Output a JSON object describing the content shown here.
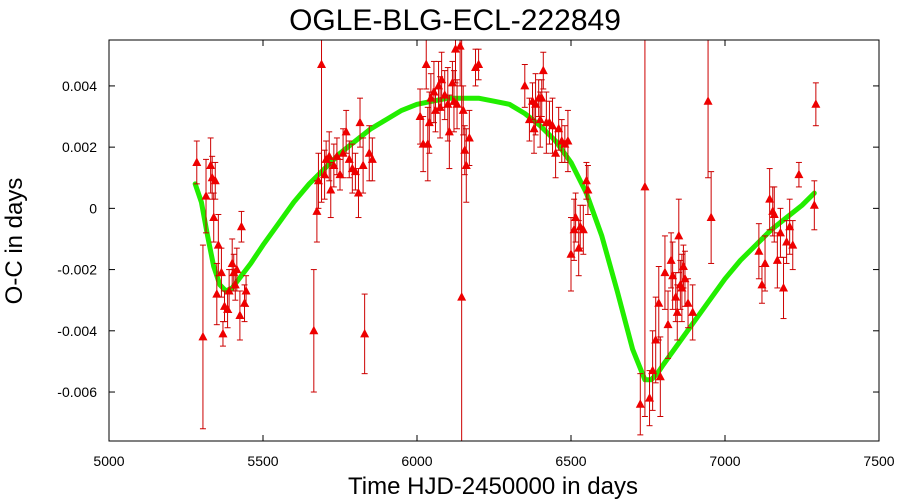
{
  "chart_data": {
    "type": "scatter",
    "title": "OGLE-BLG-ECL-222849",
    "xlabel": "Time HJD-2450000 in days",
    "ylabel": "O-C in days",
    "xlim": [
      5000,
      7500
    ],
    "ylim": [
      -0.0076,
      0.0055
    ],
    "x_ticks": [
      5000,
      5500,
      6000,
      6500,
      7000,
      7500
    ],
    "x_tick_labels": [
      "5000",
      "5500",
      "6000",
      "6500",
      "7000",
      "7500"
    ],
    "y_ticks": [
      -0.006,
      -0.004,
      -0.002,
      0,
      0.002,
      0.004
    ],
    "y_tick_labels": [
      "-0.006",
      "-0.004",
      "-0.002",
      "0",
      "0.002",
      "0.004"
    ],
    "grid": false,
    "colors": {
      "points": "#ee0000",
      "errorbars": "#cc0000",
      "fit": "#22ee00",
      "frame": "#000000"
    },
    "series": [
      {
        "kind": "observations",
        "marker": "triangle",
        "points": [
          [
            5285,
            0.0015,
            0.0007
          ],
          [
            5305,
            -0.0042,
            0.003
          ],
          [
            5315,
            0.0004,
            0.0012
          ],
          [
            5330,
            0.0014,
            0.0009
          ],
          [
            5335,
            0.001,
            0.0007
          ],
          [
            5340,
            -0.0003,
            0.0008
          ],
          [
            5345,
            0.0009,
            0.0006
          ],
          [
            5350,
            -0.0028,
            0.001
          ],
          [
            5355,
            -0.0012,
            0.001
          ],
          [
            5365,
            -0.0021,
            0.0008
          ],
          [
            5370,
            -0.0041,
            0.0004
          ],
          [
            5375,
            -0.0032,
            0.0005
          ],
          [
            5385,
            -0.0033,
            0.0006
          ],
          [
            5390,
            -0.0027,
            0.0007
          ],
          [
            5400,
            -0.0018,
            0.0008
          ],
          [
            5405,
            -0.0021,
            0.0006
          ],
          [
            5410,
            -0.0025,
            0.0005
          ],
          [
            5415,
            -0.002,
            0.0007
          ],
          [
            5425,
            -0.0035,
            0.0008
          ],
          [
            5430,
            -0.0006,
            0.0005
          ],
          [
            5440,
            -0.0031,
            0.0006
          ],
          [
            5445,
            -0.0027,
            0.0005
          ],
          [
            5665,
            -0.004,
            0.002
          ],
          [
            5675,
            -0.0001,
            0.001
          ],
          [
            5680,
            0.0009,
            0.0009
          ],
          [
            5690,
            0.0047,
            0.0045
          ],
          [
            5700,
            0.0011,
            0.0008
          ],
          [
            5705,
            0.0016,
            0.0006
          ],
          [
            5715,
            0.0017,
            0.0008
          ],
          [
            5720,
            0.0006,
            0.0009
          ],
          [
            5730,
            0.0014,
            0.0007
          ],
          [
            5740,
            0.0017,
            0.0006
          ],
          [
            5750,
            0.0011,
            0.0005
          ],
          [
            5760,
            0.0018,
            0.0008
          ],
          [
            5770,
            0.0025,
            0.0007
          ],
          [
            5780,
            0.0016,
            0.0006
          ],
          [
            5790,
            0.0013,
            0.0008
          ],
          [
            5800,
            0.0012,
            0.0006
          ],
          [
            5810,
            0.0005,
            0.0008
          ],
          [
            5815,
            0.0028,
            0.0008
          ],
          [
            5825,
            0.0014,
            0.0009
          ],
          [
            5830,
            -0.0041,
            0.0013
          ],
          [
            5845,
            0.0018,
            0.0009
          ],
          [
            5855,
            0.0016,
            0.0007
          ],
          [
            6010,
            0.003,
            0.0009
          ],
          [
            6020,
            0.0021,
            0.0009
          ],
          [
            6030,
            0.0047,
            0.0008
          ],
          [
            6035,
            0.0021,
            0.0012
          ],
          [
            6040,
            0.0028,
            0.001
          ],
          [
            6045,
            0.0036,
            0.0008
          ],
          [
            6055,
            0.0038,
            0.001
          ],
          [
            6060,
            0.0032,
            0.0007
          ],
          [
            6070,
            0.004,
            0.0008
          ],
          [
            6075,
            0.0033,
            0.001
          ],
          [
            6080,
            0.0042,
            0.0009
          ],
          [
            6090,
            0.0037,
            0.0008
          ],
          [
            6100,
            0.0034,
            0.0012
          ],
          [
            6105,
            0.0025,
            0.0012
          ],
          [
            6115,
            0.0041,
            0.0007
          ],
          [
            6120,
            0.0035,
            0.001
          ],
          [
            6125,
            0.0052,
            0.0011
          ],
          [
            6130,
            0.0034,
            0.0008
          ],
          [
            6140,
            0.0053,
            0.0013
          ],
          [
            6145,
            -0.0029,
            0.0085
          ],
          [
            6150,
            0.0032,
            0.0008
          ],
          [
            6155,
            0.0019,
            0.0008
          ],
          [
            6160,
            0.0014,
            0.0012
          ],
          [
            6170,
            0.0023,
            0.0009
          ],
          [
            6190,
            0.0046,
            0.0006
          ],
          [
            6200,
            0.0047,
            0.0005
          ],
          [
            6350,
            0.004,
            0.0007
          ],
          [
            6365,
            0.0029,
            0.0007
          ],
          [
            6375,
            0.0035,
            0.0006
          ],
          [
            6380,
            0.0026,
            0.0008
          ],
          [
            6385,
            0.0034,
            0.001
          ],
          [
            6395,
            0.0036,
            0.0006
          ],
          [
            6400,
            0.0029,
            0.0009
          ],
          [
            6405,
            0.0036,
            0.0006
          ],
          [
            6410,
            0.0045,
            0.0006
          ],
          [
            6420,
            0.0028,
            0.001
          ],
          [
            6430,
            0.0028,
            0.0007
          ],
          [
            6440,
            0.0027,
            0.0009
          ],
          [
            6450,
            0.0018,
            0.0008
          ],
          [
            6460,
            0.0026,
            0.0007
          ],
          [
            6470,
            0.0022,
            0.0007
          ],
          [
            6480,
            0.0021,
            0.0006
          ],
          [
            6490,
            0.0022,
            0.001
          ],
          [
            6500,
            -0.0015,
            0.0012
          ],
          [
            6510,
            -0.0007,
            0.001
          ],
          [
            6515,
            -0.0003,
            0.0008
          ],
          [
            6525,
            -0.0013,
            0.0009
          ],
          [
            6530,
            -0.0006,
            0.0007
          ],
          [
            6540,
            -0.0007,
            0.0008
          ],
          [
            6550,
            0.0009,
            0.0006
          ],
          [
            6555,
            0.0006,
            0.0008
          ],
          [
            6725,
            -0.0064,
            0.001
          ],
          [
            6740,
            0.0007,
            0.0075
          ],
          [
            6755,
            -0.0062,
            0.0009
          ],
          [
            6765,
            -0.0053,
            0.0013
          ],
          [
            6775,
            -0.0043,
            0.0014
          ],
          [
            6785,
            -0.0031,
            0.0012
          ],
          [
            6790,
            -0.0055,
            0.0013
          ],
          [
            6805,
            -0.0021,
            0.0012
          ],
          [
            6815,
            -0.0038,
            0.0011
          ],
          [
            6825,
            -0.0017,
            0.0009
          ],
          [
            6830,
            -0.0022,
            0.0011
          ],
          [
            6840,
            -0.0029,
            0.0008
          ],
          [
            6845,
            -0.0034,
            0.0009
          ],
          [
            6850,
            -0.0009,
            0.0012
          ],
          [
            6855,
            -0.0025,
            0.0008
          ],
          [
            6860,
            -0.0026,
            0.0011
          ],
          [
            6865,
            -0.0019,
            0.0007
          ],
          [
            6870,
            -0.0023,
            0.0009
          ],
          [
            6880,
            -0.0031,
            0.0008
          ],
          [
            6895,
            -0.0034,
            0.0009
          ],
          [
            6945,
            0.0035,
            0.0025
          ],
          [
            6955,
            -0.0003,
            0.0015
          ],
          [
            7110,
            -0.0014,
            0.0009
          ],
          [
            7120,
            -0.0025,
            0.0006
          ],
          [
            7130,
            -0.0018,
            0.0009
          ],
          [
            7145,
            0.0003,
            0.001
          ],
          [
            7155,
            -0.0001,
            0.0008
          ],
          [
            7160,
            -0.0002,
            0.0009
          ],
          [
            7170,
            -0.0017,
            0.0009
          ],
          [
            7180,
            -0.0008,
            0.0008
          ],
          [
            7190,
            -0.0026,
            0.001
          ],
          [
            7200,
            -0.0011,
            0.0007
          ],
          [
            7210,
            -0.0006,
            0.0009
          ],
          [
            7220,
            -0.0012,
            0.0008
          ],
          [
            7240,
            0.0011,
            0.0004
          ],
          [
            7290,
            0.0001,
            0.0008
          ],
          [
            7295,
            0.0034,
            0.0007
          ]
        ]
      },
      {
        "kind": "fit",
        "points": [
          [
            5280,
            0.0008
          ],
          [
            5300,
            0.0002
          ],
          [
            5320,
            -0.0009
          ],
          [
            5340,
            -0.0019
          ],
          [
            5360,
            -0.0025
          ],
          [
            5380,
            -0.0027
          ],
          [
            5400,
            -0.0026
          ],
          [
            5430,
            -0.0022
          ],
          [
            5460,
            -0.0018
          ],
          [
            5500,
            -0.0012
          ],
          [
            5550,
            -0.0005
          ],
          [
            5600,
            0.0002
          ],
          [
            5650,
            0.0008
          ],
          [
            5700,
            0.0013
          ],
          [
            5750,
            0.0018
          ],
          [
            5800,
            0.0022
          ],
          [
            5850,
            0.0026
          ],
          [
            5900,
            0.0029
          ],
          [
            5950,
            0.0032
          ],
          [
            6000,
            0.0034
          ],
          [
            6050,
            0.0035
          ],
          [
            6100,
            0.0036
          ],
          [
            6150,
            0.0036
          ],
          [
            6200,
            0.0036
          ],
          [
            6250,
            0.0035
          ],
          [
            6300,
            0.0034
          ],
          [
            6350,
            0.0031
          ],
          [
            6400,
            0.0027
          ],
          [
            6450,
            0.0022
          ],
          [
            6500,
            0.0015
          ],
          [
            6550,
            0.0005
          ],
          [
            6600,
            -0.0009
          ],
          [
            6650,
            -0.0027
          ],
          [
            6700,
            -0.0046
          ],
          [
            6740,
            -0.0056
          ],
          [
            6760,
            -0.0056
          ],
          [
            6780,
            -0.0054
          ],
          [
            6800,
            -0.0051
          ],
          [
            6850,
            -0.0044
          ],
          [
            6900,
            -0.0037
          ],
          [
            6950,
            -0.003
          ],
          [
            7000,
            -0.0023
          ],
          [
            7050,
            -0.0017
          ],
          [
            7100,
            -0.0012
          ],
          [
            7150,
            -0.0007
          ],
          [
            7200,
            -0.0003
          ],
          [
            7250,
            0.0001
          ],
          [
            7290,
            0.0005
          ]
        ]
      }
    ]
  }
}
